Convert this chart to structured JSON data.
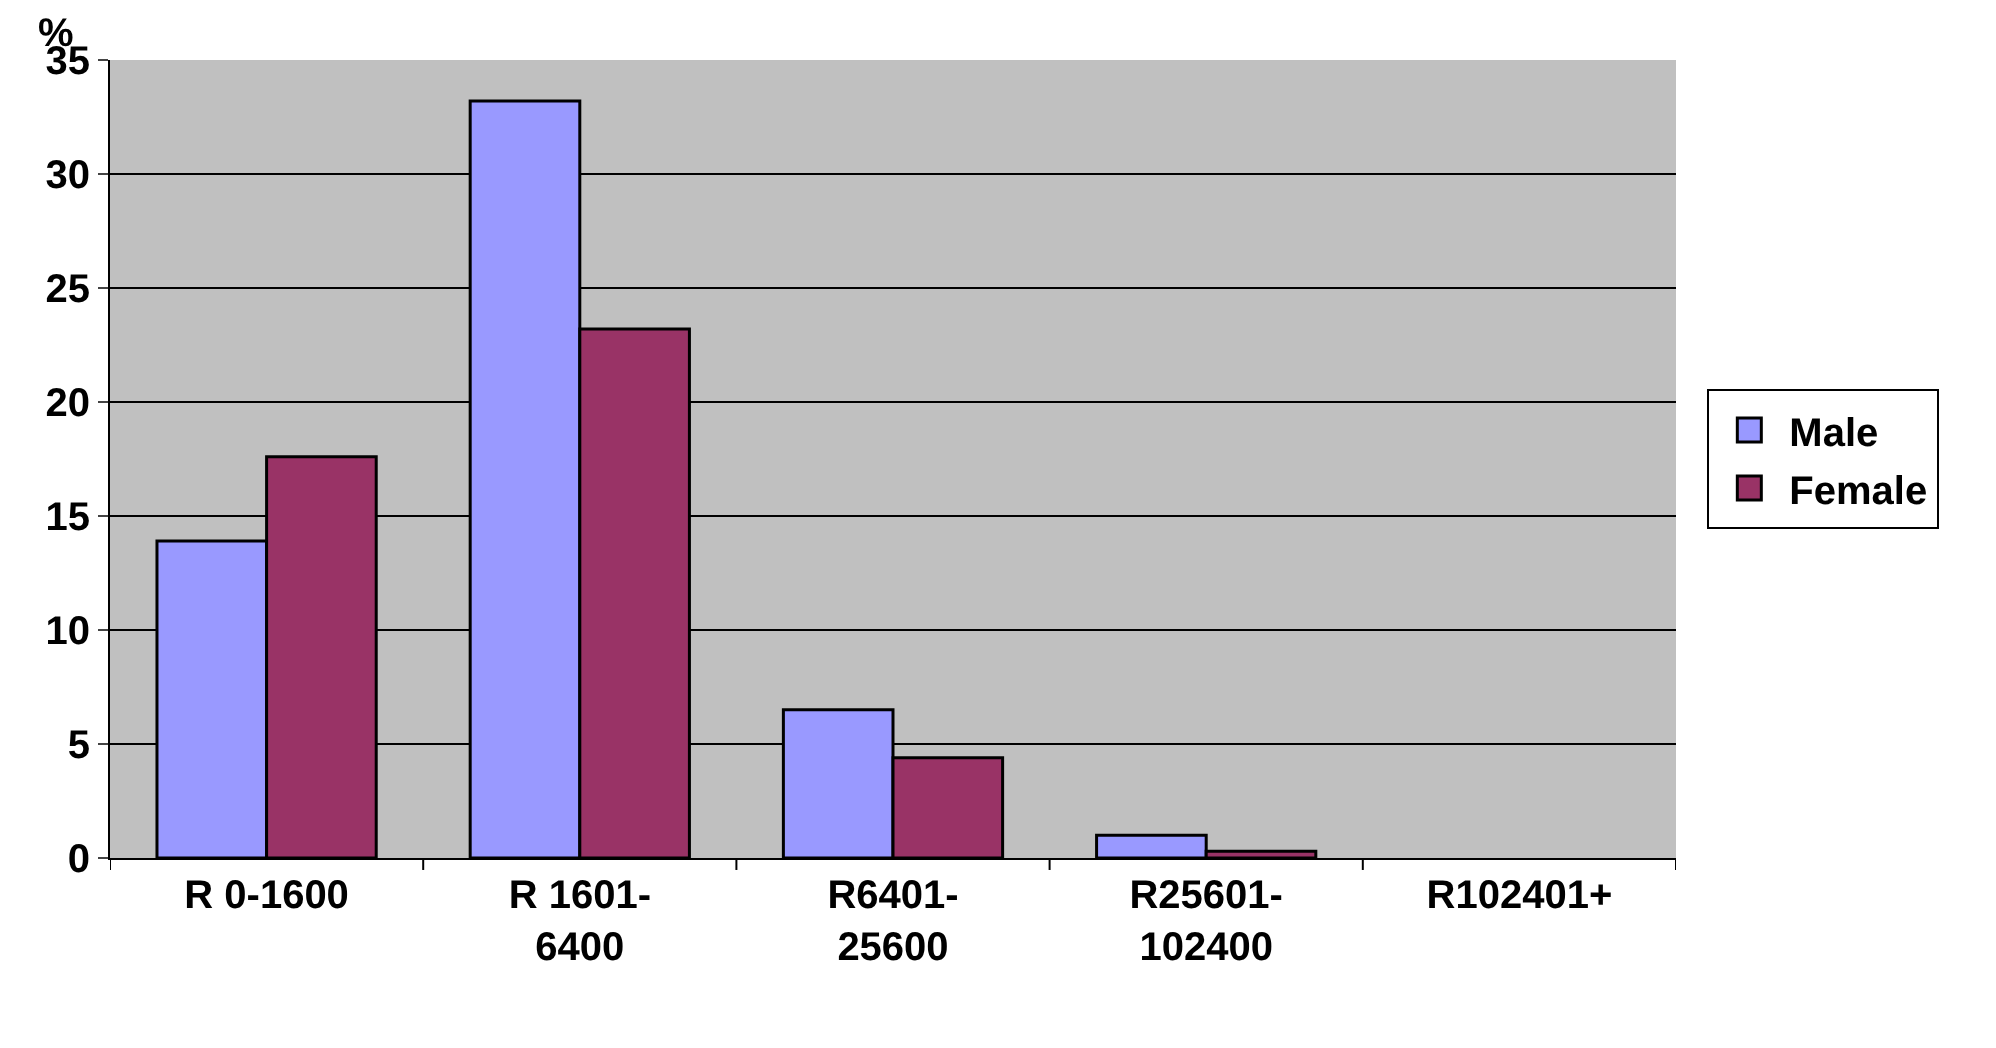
{
  "chart_data": {
    "type": "bar",
    "ylabel": "%",
    "categories": [
      "R 0-1600",
      "R 1601-6400",
      "R6401-25600",
      "R25601-102400",
      "R102401+"
    ],
    "series": [
      {
        "name": "Male",
        "color": "#9999ff",
        "values": [
          13.9,
          33.2,
          6.5,
          1.0,
          null
        ]
      },
      {
        "name": "Female",
        "color": "#993366",
        "values": [
          17.6,
          23.2,
          4.4,
          0.3,
          null
        ]
      }
    ],
    "ylim": [
      0,
      35
    ],
    "yticks": [
      0,
      5,
      10,
      15,
      20,
      25,
      30,
      35
    ],
    "grid": "y",
    "legend": "right"
  }
}
